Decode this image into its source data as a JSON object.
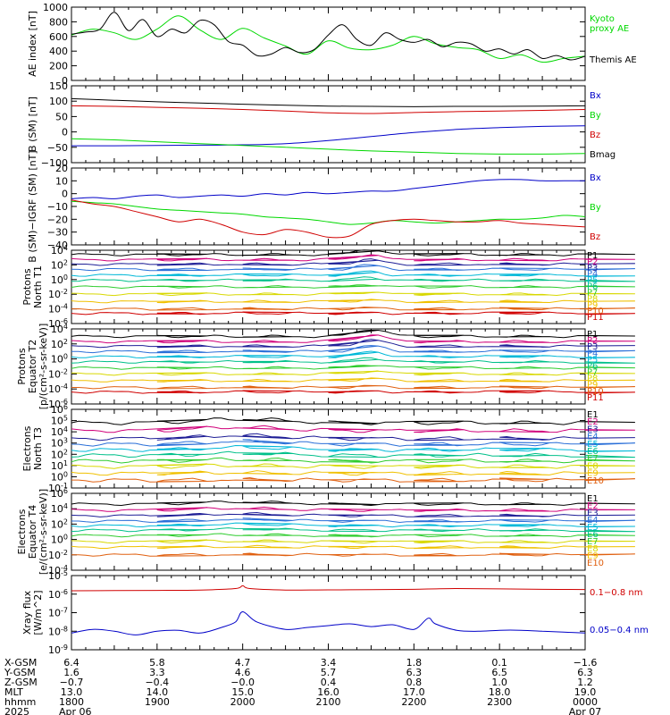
{
  "colors": {
    "black": "#000000",
    "green": "#00d800",
    "blue": "#0000c8",
    "red": "#d00000",
    "scale": [
      "#000000",
      "#d0007a",
      "#1e1e96",
      "#2a6fd8",
      "#00b8d8",
      "#00c08a",
      "#2ecc2e",
      "#d8d800",
      "#f0c000",
      "#e06010",
      "#d00000"
    ]
  },
  "chart_data": [
    {
      "id": "ae",
      "type": "line",
      "ylabel": "AE index [nT]",
      "ylim": [
        0,
        1000
      ],
      "yticks": [
        {
          "v": 0,
          "t": "0"
        },
        {
          "v": 200,
          "t": "200"
        },
        {
          "v": 400,
          "t": "400"
        },
        {
          "v": 600,
          "t": "600"
        },
        {
          "v": 800,
          "t": "800"
        },
        {
          "v": 1000,
          "t": "1000"
        }
      ],
      "series": [
        {
          "name": "Kyoto proxy AE",
          "legend": [
            "Kyoto",
            "proxy AE"
          ],
          "color": "green",
          "x": [
            1800,
            1815,
            1830,
            1845,
            1900,
            1915,
            1930,
            1945,
            2000,
            2015,
            2030,
            2045,
            2100,
            2115,
            2130,
            2145,
            2200,
            2215,
            2230,
            2245,
            2300,
            2315,
            2330,
            2345,
            2400
          ],
          "y": [
            620,
            700,
            650,
            560,
            700,
            880,
            690,
            560,
            710,
            580,
            470,
            360,
            540,
            440,
            420,
            480,
            600,
            500,
            450,
            420,
            300,
            350,
            250,
            300,
            330
          ]
        },
        {
          "name": "Themis AE",
          "legend": [
            "Themis AE"
          ],
          "color": "black",
          "x": [
            1800,
            1810,
            1820,
            1830,
            1840,
            1850,
            1900,
            1910,
            1920,
            1930,
            1940,
            1950,
            2000,
            2010,
            2020,
            2030,
            2040,
            2050,
            2100,
            2110,
            2120,
            2130,
            2140,
            2150,
            2200,
            2210,
            2220,
            2230,
            2240,
            2250,
            2300,
            2310,
            2320,
            2330,
            2340,
            2350,
            2400
          ],
          "y": [
            630,
            660,
            700,
            930,
            680,
            830,
            600,
            700,
            650,
            820,
            760,
            530,
            480,
            340,
            360,
            450,
            380,
            420,
            620,
            760,
            560,
            480,
            650,
            560,
            520,
            560,
            460,
            520,
            500,
            400,
            430,
            360,
            420,
            300,
            340,
            280,
            330
          ]
        }
      ]
    },
    {
      "id": "bsm",
      "type": "line",
      "ylabel": "B (SM) [nT]",
      "ylim": [
        -100,
        150
      ],
      "yticks": [
        {
          "v": -100,
          "t": "−100"
        },
        {
          "v": -50,
          "t": "−50"
        },
        {
          "v": 0,
          "t": "0"
        },
        {
          "v": 50,
          "t": "50"
        },
        {
          "v": 100,
          "t": "100"
        },
        {
          "v": 150,
          "t": "150"
        }
      ],
      "series": [
        {
          "name": "Bx",
          "color": "blue",
          "x": [
            1800,
            1830,
            1900,
            1930,
            2000,
            2030,
            2100,
            2130,
            2200,
            2230,
            2300,
            2330,
            2400
          ],
          "y": [
            -45,
            -45,
            -44,
            -43,
            -42,
            -38,
            -28,
            -15,
            -2,
            8,
            14,
            18,
            20
          ]
        },
        {
          "name": "By",
          "color": "green",
          "x": [
            1800,
            1830,
            1900,
            1930,
            2000,
            2030,
            2100,
            2130,
            2200,
            2230,
            2300,
            2330,
            2400
          ],
          "y": [
            -22,
            -26,
            -32,
            -38,
            -44,
            -50,
            -56,
            -62,
            -66,
            -70,
            -72,
            -72,
            -70
          ]
        },
        {
          "name": "Bz",
          "color": "red",
          "x": [
            1800,
            1830,
            1900,
            1930,
            2000,
            2030,
            2100,
            2130,
            2200,
            2230,
            2300,
            2330,
            2400
          ],
          "y": [
            85,
            83,
            80,
            77,
            73,
            68,
            62,
            60,
            63,
            66,
            68,
            70,
            73
          ]
        },
        {
          "name": "Bmag",
          "color": "black",
          "x": [
            1800,
            1830,
            1900,
            1930,
            2000,
            2030,
            2100,
            2130,
            2200,
            2230,
            2300,
            2330,
            2400
          ],
          "y": [
            108,
            103,
            98,
            94,
            90,
            87,
            84,
            83,
            82,
            83,
            83,
            84,
            85
          ]
        }
      ]
    },
    {
      "id": "bdiff",
      "type": "line",
      "ylabel": "B (SM)−IGRF (SM) [nT]",
      "ylim": [
        -40,
        20
      ],
      "yticks": [
        {
          "v": -40,
          "t": "−40"
        },
        {
          "v": -30,
          "t": "−30"
        },
        {
          "v": -20,
          "t": "−20"
        },
        {
          "v": -10,
          "t": "−10"
        },
        {
          "v": 0,
          "t": "0"
        },
        {
          "v": 10,
          "t": "10"
        },
        {
          "v": 20,
          "t": "20"
        }
      ],
      "series": [
        {
          "name": "Bx",
          "color": "blue",
          "x": [
            1800,
            1815,
            1830,
            1845,
            1900,
            1915,
            1930,
            1945,
            2000,
            2015,
            2030,
            2045,
            2100,
            2115,
            2130,
            2145,
            2200,
            2215,
            2230,
            2245,
            2300,
            2315,
            2330,
            2345,
            2400
          ],
          "y": [
            -4,
            -3,
            -4,
            -2,
            -1,
            -3,
            -2,
            -1,
            -2,
            0,
            -1,
            1,
            0,
            1,
            2,
            2,
            4,
            6,
            8,
            10,
            11,
            11,
            10,
            10,
            10
          ]
        },
        {
          "name": "By",
          "color": "green",
          "x": [
            1800,
            1815,
            1830,
            1845,
            1900,
            1915,
            1930,
            1945,
            2000,
            2015,
            2030,
            2045,
            2100,
            2115,
            2130,
            2145,
            2200,
            2215,
            2230,
            2245,
            2300,
            2315,
            2330,
            2345,
            2400
          ],
          "y": [
            -6,
            -7,
            -8,
            -10,
            -12,
            -13,
            -14,
            -15,
            -16,
            -18,
            -19,
            -20,
            -22,
            -24,
            -23,
            -21,
            -22,
            -23,
            -22,
            -21,
            -20,
            -20,
            -19,
            -17,
            -18
          ]
        },
        {
          "name": "Bz",
          "color": "red",
          "x": [
            1800,
            1815,
            1830,
            1845,
            1900,
            1915,
            1930,
            1945,
            2000,
            2015,
            2030,
            2045,
            2100,
            2115,
            2130,
            2145,
            2200,
            2215,
            2230,
            2245,
            2300,
            2315,
            2330,
            2345,
            2400
          ],
          "y": [
            -5,
            -8,
            -10,
            -14,
            -18,
            -22,
            -20,
            -24,
            -30,
            -32,
            -28,
            -30,
            -34,
            -33,
            -24,
            -21,
            -20,
            -21,
            -22,
            -22,
            -21,
            -23,
            -24,
            -25,
            -26
          ]
        }
      ]
    },
    {
      "id": "protons-t1",
      "type": "line",
      "log": true,
      "ylabel": [
        "Protons",
        "North T1"
      ],
      "ylim": [
        -6,
        4
      ],
      "yticks": [
        {
          "v": -6,
          "t": "10^-6"
        },
        {
          "v": -4,
          "t": "10^-4"
        },
        {
          "v": -2,
          "t": "10^-2"
        },
        {
          "v": 0,
          "t": "10^0"
        },
        {
          "v": 2,
          "t": "10^2"
        },
        {
          "v": 4,
          "t": "10^4"
        }
      ],
      "channel_names": [
        "P1",
        "P2",
        "P3",
        "P4",
        "P5",
        "P6",
        "P7",
        "P8",
        "P9",
        "P10",
        "P11"
      ],
      "levels": [
        3.4,
        2.7,
        2.1,
        1.4,
        0.6,
        -0.1,
        -1.0,
        -2.0,
        -3.0,
        -4.0,
        -4.6
      ],
      "bump": {
        "center": 2128,
        "width": 12,
        "height": 0.8
      }
    },
    {
      "id": "protons-t2",
      "type": "line",
      "log": true,
      "ylabel": [
        "Protons",
        "Equator T2",
        "[p/(cm²-s-sr-keV)]"
      ],
      "ylim": [
        -6,
        4
      ],
      "yticks": [
        {
          "v": -6,
          "t": "10^-6"
        },
        {
          "v": -4,
          "t": "10^-4"
        },
        {
          "v": -2,
          "t": "10^-2"
        },
        {
          "v": 0,
          "t": "10^0"
        },
        {
          "v": 2,
          "t": "10^2"
        },
        {
          "v": 4,
          "t": "10^4"
        }
      ],
      "channel_names": [
        "P1",
        "P2",
        "P3",
        "P4",
        "P5",
        "P6",
        "P7",
        "P8",
        "P9",
        "P10",
        "P11"
      ],
      "levels": [
        3.0,
        2.3,
        1.7,
        1.0,
        0.3,
        -0.4,
        -1.2,
        -2.0,
        -2.9,
        -3.8,
        -4.4
      ],
      "bump": {
        "center": 2130,
        "width": 14,
        "height": 1.0
      }
    },
    {
      "id": "electrons-t3",
      "type": "line",
      "log": true,
      "ylabel": [
        "Electrons",
        "North T3"
      ],
      "ylim": [
        -1,
        6
      ],
      "yticks": [
        {
          "v": -1,
          "t": "10^-1"
        },
        {
          "v": 0,
          "t": "10^0"
        },
        {
          "v": 1,
          "t": "10^1"
        },
        {
          "v": 2,
          "t": "10^2"
        },
        {
          "v": 3,
          "t": "10^3"
        },
        {
          "v": 4,
          "t": "10^4"
        },
        {
          "v": 5,
          "t": "10^5"
        },
        {
          "v": 6,
          "t": "10^6"
        }
      ],
      "channel_names": [
        "E1",
        "E2",
        "E3",
        "E4",
        "E5",
        "E6",
        "E7",
        "E8",
        "E9",
        "E10"
      ],
      "levels": [
        4.8,
        4.1,
        3.4,
        2.9,
        2.4,
        1.9,
        1.4,
        0.9,
        0.3,
        -0.3
      ],
      "bump": {
        "center": 2000,
        "width": 40,
        "height": 0.35
      }
    },
    {
      "id": "electrons-t4",
      "type": "line",
      "log": true,
      "ylabel": [
        "Electrons",
        "Equator T4",
        "[e/(cm²-s-sr-keV)]"
      ],
      "ylim": [
        -4,
        6
      ],
      "yticks": [
        {
          "v": -4,
          "t": "10^-4"
        },
        {
          "v": -2,
          "t": "10^-2"
        },
        {
          "v": 0,
          "t": "10^0"
        },
        {
          "v": 2,
          "t": "10^2"
        },
        {
          "v": 4,
          "t": "10^4"
        },
        {
          "v": 6,
          "t": "10^6"
        }
      ],
      "channel_names": [
        "E1",
        "E2",
        "E3",
        "E4",
        "E5",
        "E6",
        "E7",
        "E8",
        "E9",
        "E10"
      ],
      "levels": [
        4.6,
        3.8,
        3.1,
        2.4,
        1.8,
        1.2,
        0.5,
        -0.3,
        -1.0,
        -2.0
      ],
      "bump": {
        "center": 2000,
        "width": 40,
        "height": 0.3
      }
    },
    {
      "id": "xray",
      "type": "line",
      "log": true,
      "ylabel": [
        "Xray flux",
        "[W/m^2]"
      ],
      "ylim": [
        -9,
        -5
      ],
      "yticks": [
        {
          "v": -9,
          "t": "10^-9"
        },
        {
          "v": -8,
          "t": "10^-8"
        },
        {
          "v": -7,
          "t": "10^-7"
        },
        {
          "v": -6,
          "t": "10^-6"
        },
        {
          "v": -5,
          "t": "10^-5"
        }
      ],
      "series": [
        {
          "name": "0.1−0.8 nm",
          "color": "red",
          "x": [
            1800,
            1830,
            1900,
            1930,
            1955,
            2000,
            2005,
            2030,
            2100,
            2130,
            2200,
            2230,
            2300,
            2330,
            2400
          ],
          "y": [
            -5.82,
            -5.81,
            -5.8,
            -5.78,
            -5.7,
            -5.55,
            -5.7,
            -5.78,
            -5.77,
            -5.76,
            -5.74,
            -5.7,
            -5.72,
            -5.74,
            -5.75
          ]
        },
        {
          "name": "0.05−0.4 nm",
          "color": "blue",
          "x": [
            1800,
            1815,
            1830,
            1845,
            1900,
            1915,
            1930,
            1945,
            1955,
            2000,
            2010,
            2030,
            2045,
            2100,
            2115,
            2130,
            2145,
            2200,
            2210,
            2215,
            2230,
            2245,
            2300,
            2315,
            2330,
            2345,
            2400
          ],
          "y": [
            -8.1,
            -7.9,
            -8.0,
            -8.2,
            -8.0,
            -7.95,
            -8.1,
            -7.8,
            -7.5,
            -6.95,
            -7.5,
            -7.9,
            -7.8,
            -7.7,
            -7.6,
            -7.75,
            -7.65,
            -7.9,
            -7.3,
            -7.6,
            -7.95,
            -8.0,
            -7.95,
            -7.95,
            -8.0,
            -8.05,
            -8.1
          ]
        }
      ]
    }
  ],
  "xaxis": {
    "range": [
      1800,
      2400
    ],
    "major": [
      1800,
      1900,
      2000,
      2100,
      2200,
      2300,
      2400
    ],
    "rows": [
      {
        "label": "X-GSM",
        "values": [
          "6.4",
          "5.8",
          "4.7",
          "3.4",
          "1.8",
          "0.1",
          "−1.6"
        ]
      },
      {
        "label": "Y-GSM",
        "values": [
          "1.6",
          "3.3",
          "4.6",
          "5.7",
          "6.3",
          "6.5",
          "6.3"
        ]
      },
      {
        "label": "Z-GSM",
        "values": [
          "−0.7",
          "−0.4",
          "−0.0",
          "0.4",
          "0.8",
          "1.0",
          "1.2"
        ]
      },
      {
        "label": "MLT",
        "values": [
          "13.0",
          "14.0",
          "15.0",
          "16.0",
          "17.0",
          "18.0",
          "19.0"
        ]
      },
      {
        "label": "hhmm",
        "values": [
          "1800",
          "1900",
          "2000",
          "2100",
          "2200",
          "2300",
          "0000"
        ]
      },
      {
        "label": "2025",
        "values": [
          "Apr 06",
          "",
          "",
          "",
          "",
          "",
          "Apr 07"
        ]
      }
    ]
  }
}
